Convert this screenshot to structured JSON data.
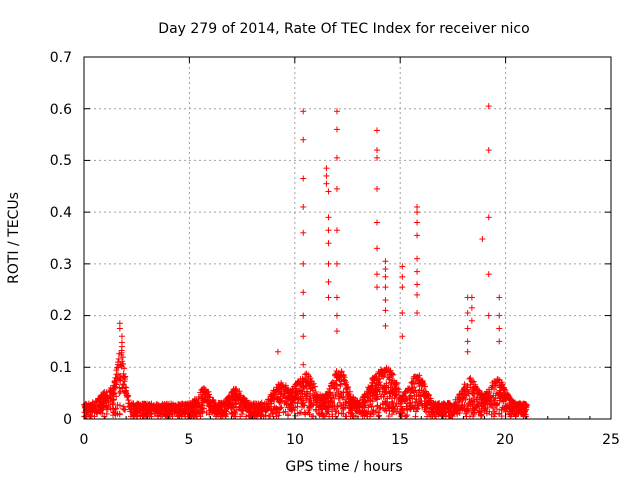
{
  "chart_data": {
    "type": "scatter",
    "title": "Day 279 of 2014, Rate Of TEC Index for receiver nico",
    "xlabel": "GPS time / hours",
    "ylabel": "ROTI / TECUs",
    "xlim": [
      0,
      25
    ],
    "ylim": [
      0,
      0.7
    ],
    "xticks": [
      "0",
      "5",
      "10",
      "15",
      "20",
      "25"
    ],
    "yticks": [
      "0",
      "0.1",
      "0.2",
      "0.3",
      "0.4",
      "0.5",
      "0.6",
      "0.7"
    ],
    "grid": true,
    "marker": "+",
    "color": "#ff0000",
    "series": [
      {
        "name": "ROTI",
        "x": [
          10.4,
          10.4,
          10.4,
          10.4,
          10.4,
          10.4,
          10.4,
          10.4,
          10.4,
          10.4,
          11.5,
          11.5,
          11.5,
          11.6,
          11.6,
          11.6,
          11.6,
          11.6,
          11.6,
          11.6,
          12.0,
          12.0,
          12.0,
          12.0,
          12.0,
          12.0,
          12.0,
          12.0,
          12.0,
          13.9,
          13.9,
          13.9,
          13.9,
          13.9,
          13.9,
          13.9,
          13.9,
          14.3,
          14.3,
          14.3,
          14.3,
          14.3,
          14.3,
          14.3,
          15.1,
          15.1,
          15.1,
          15.1,
          15.1,
          15.8,
          15.8,
          15.8,
          15.8,
          15.8,
          15.8,
          15.8,
          15.8,
          15.8,
          18.2,
          18.2,
          18.2,
          18.2,
          18.2,
          18.4,
          18.4,
          18.4,
          18.9,
          19.2,
          19.2,
          19.2,
          19.2,
          19.2,
          19.7,
          19.7,
          19.7,
          19.7,
          9.2,
          1.7,
          1.7,
          1.8,
          1.8,
          1.8
        ],
        "y": [
          0.595,
          0.54,
          0.465,
          0.41,
          0.36,
          0.3,
          0.245,
          0.2,
          0.16,
          0.105,
          0.485,
          0.47,
          0.455,
          0.44,
          0.39,
          0.365,
          0.34,
          0.3,
          0.265,
          0.235,
          0.595,
          0.56,
          0.505,
          0.445,
          0.365,
          0.3,
          0.235,
          0.2,
          0.17,
          0.558,
          0.52,
          0.505,
          0.445,
          0.38,
          0.33,
          0.28,
          0.255,
          0.305,
          0.29,
          0.275,
          0.255,
          0.23,
          0.21,
          0.18,
          0.295,
          0.275,
          0.255,
          0.205,
          0.16,
          0.41,
          0.4,
          0.38,
          0.355,
          0.31,
          0.285,
          0.26,
          0.24,
          0.205,
          0.235,
          0.205,
          0.175,
          0.15,
          0.13,
          0.235,
          0.215,
          0.19,
          0.348,
          0.605,
          0.52,
          0.39,
          0.28,
          0.2,
          0.235,
          0.2,
          0.175,
          0.15,
          0.13,
          0.185,
          0.175,
          0.16,
          0.148,
          0.14
        ]
      }
    ]
  }
}
